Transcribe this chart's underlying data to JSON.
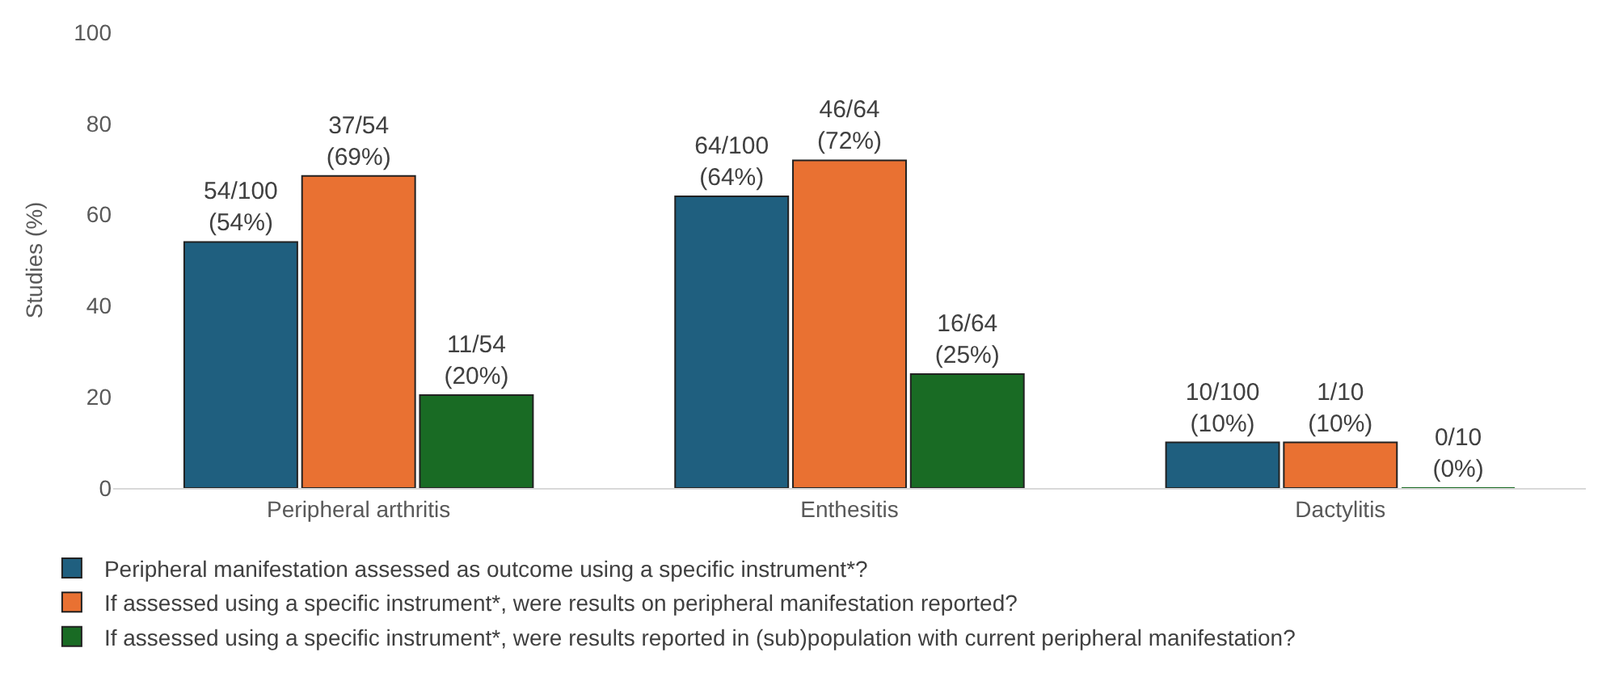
{
  "chart_data": {
    "type": "bar",
    "ylabel": "Studies (%)",
    "categories": [
      "Peripheral arthritis",
      "Enthesitis",
      "Dactylitis"
    ],
    "series": [
      {
        "name": "Peripheral manifestation assessed as outcome using a specific instrument*?",
        "color": "#1f5f7f",
        "values": [
          54,
          64,
          10
        ],
        "value_labels": [
          "54/100\n(54%)",
          "64/100\n(64%)",
          "10/100\n(10%)"
        ]
      },
      {
        "name": "If assessed using a specific instrument*, were results on peripheral manifestation reported?",
        "color": "#e97132",
        "values": [
          68.5,
          71.9,
          10
        ],
        "value_labels": [
          "37/54\n(69%)",
          "46/64\n(72%)",
          "1/10\n(10%)"
        ]
      },
      {
        "name": "If assessed using a specific instrument*, were results reported in (sub)population with current peripheral manifestation?",
        "color": "#196b24",
        "values": [
          20.4,
          25,
          0
        ],
        "value_labels": [
          "11/54\n(20%)",
          "16/64\n(25%)",
          "0/10\n(0%)"
        ]
      }
    ],
    "ylim": [
      0,
      100
    ],
    "yticks": [
      0,
      20,
      40,
      60,
      80,
      100
    ],
    "legend": "bottom"
  }
}
